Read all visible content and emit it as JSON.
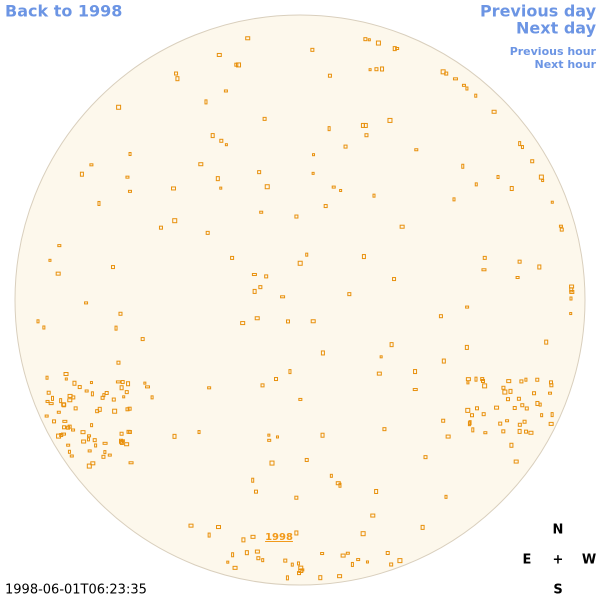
{
  "navigation": {
    "back": "Back to 1998",
    "previous_day": "Previous day",
    "next_day": "Next day",
    "previous_hour": "Previous hour",
    "next_hour": "Next hour"
  },
  "image": {
    "year_link": "1998",
    "timestamp": "1998-06-01T06:23:35"
  },
  "compass": {
    "north": "N",
    "east": "E",
    "center": "+",
    "west": "W",
    "south": "S"
  }
}
